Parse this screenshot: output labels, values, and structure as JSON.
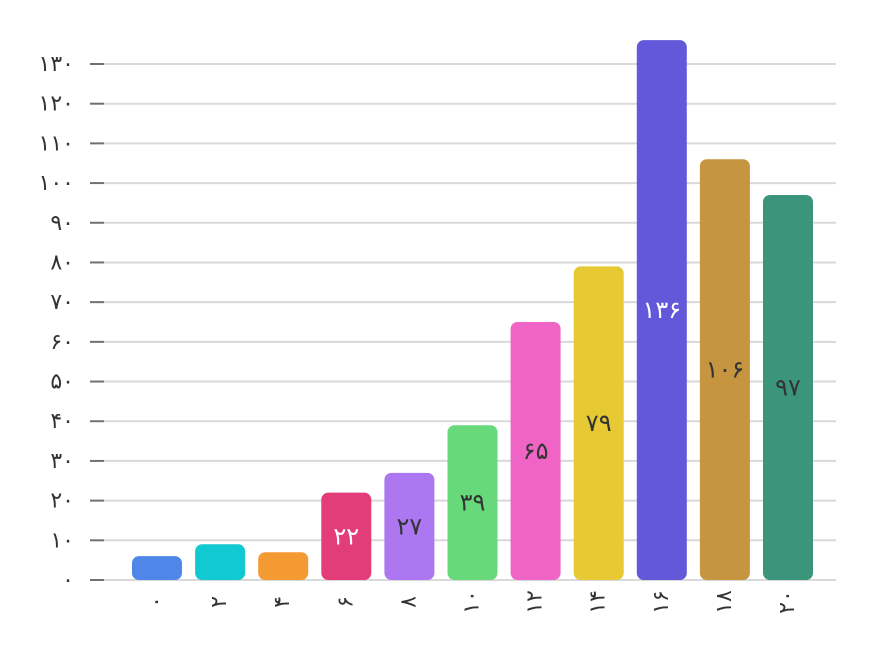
{
  "chart_data": {
    "type": "bar",
    "categories": [
      "۰",
      "۲",
      "۴",
      "۶",
      "۸",
      "۱۰",
      "۱۲",
      "۱۴",
      "۱۶",
      "۱۸",
      "۲۰"
    ],
    "values": [
      6,
      9,
      7,
      22,
      27,
      39,
      65,
      79,
      136,
      106,
      97
    ],
    "value_labels": [
      "",
      "",
      "",
      "۲۲",
      "۲۷",
      "۳۹",
      "۶۵",
      "۷۹",
      "۱۳۶",
      "۱۰۶",
      "۹۷"
    ],
    "colors": [
      "#4f87e8",
      "#11c9d1",
      "#f49a33",
      "#e33d79",
      "#ad77f2",
      "#67d97a",
      "#f064c6",
      "#e6c933",
      "#6258d9",
      "#c5953f",
      "#3a957a"
    ],
    "label_colors": [
      "#ffffff",
      "#ffffff",
      "#ffffff",
      "#ffffff",
      "#333333",
      "#333333",
      "#333333",
      "#333333",
      "#ffffff",
      "#333333",
      "#333333"
    ],
    "y_ticks": [
      {
        "value": 0,
        "label": "۰"
      },
      {
        "value": 10,
        "label": "۱۰"
      },
      {
        "value": 20,
        "label": "۲۰"
      },
      {
        "value": 30,
        "label": "۳۰"
      },
      {
        "value": 40,
        "label": "۴۰"
      },
      {
        "value": 50,
        "label": "۵۰"
      },
      {
        "value": 60,
        "label": "۶۰"
      },
      {
        "value": 70,
        "label": "۷۰"
      },
      {
        "value": 80,
        "label": "۸۰"
      },
      {
        "value": 90,
        "label": "۹۰"
      },
      {
        "value": 100,
        "label": "۱۰۰"
      },
      {
        "value": 110,
        "label": "۱۱۰"
      },
      {
        "value": 120,
        "label": "۱۲۰"
      },
      {
        "value": 130,
        "label": "۱۳۰"
      }
    ],
    "ylim": [
      0,
      130
    ],
    "grid": true,
    "title": "",
    "xlabel": "",
    "ylabel": ""
  }
}
